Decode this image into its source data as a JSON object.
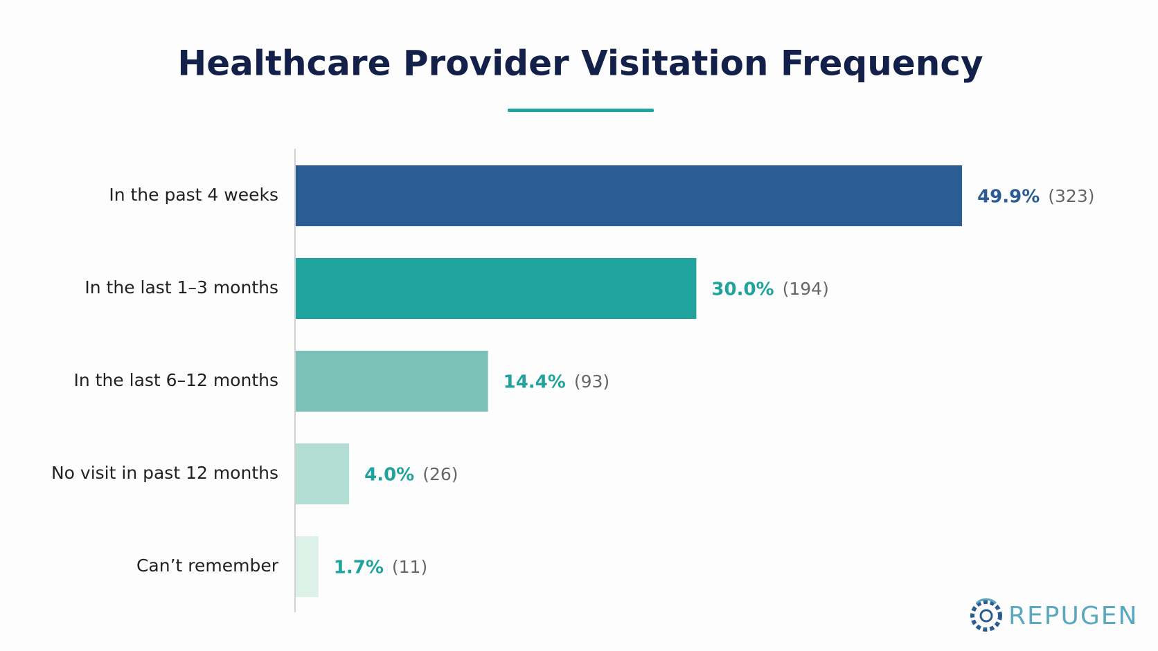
{
  "chart_data": {
    "type": "bar",
    "orientation": "horizontal",
    "title": "Healthcare Provider Visitation Frequency",
    "categories": [
      "In the past 4 weeks",
      "In the last 1–3 months",
      "In the last 6–12 months",
      "No visit in past 12 months",
      "Can’t remember"
    ],
    "values": [
      49.9,
      30.0,
      14.4,
      4.0,
      1.7
    ],
    "value_labels": [
      "49.9%",
      "30.0%",
      "14.4%",
      "4.0%",
      "1.7%"
    ],
    "counts": [
      323,
      194,
      93,
      26,
      11
    ],
    "count_labels": [
      "(323)",
      "(194)",
      "(93)",
      "(26)",
      "(11)"
    ],
    "colors": [
      "#2b5c93",
      "#1fa39c",
      "#7cc1b8",
      "#b2ddd2",
      "#dcf1e8"
    ],
    "label_colors": [
      "#2b5c93",
      "#1fa39c",
      "#1fa39c",
      "#1fa39c",
      "#1fa39c"
    ],
    "logo": "REPUGEN"
  }
}
